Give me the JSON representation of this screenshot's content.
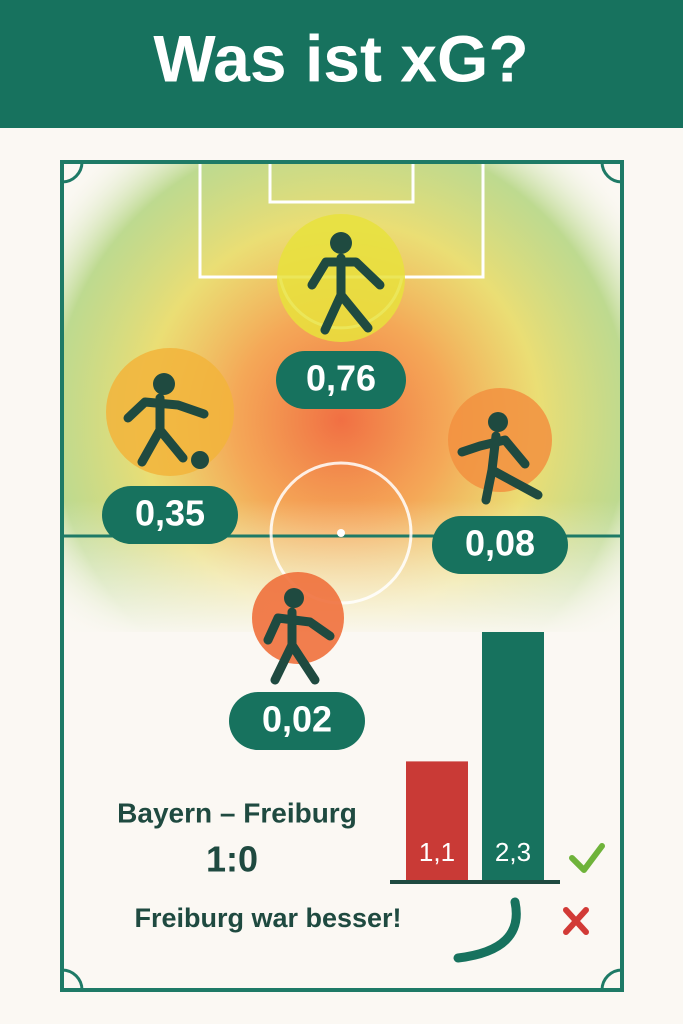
{
  "header": {
    "title": "Was ist xG?"
  },
  "shots": [
    {
      "label": "0,76"
    },
    {
      "label": "0,35"
    },
    {
      "label": "0,08"
    },
    {
      "label": "0,02"
    }
  ],
  "match": {
    "teams": "Bayern – Freiburg",
    "score": "1:0",
    "verdict": "Freiburg war besser!"
  },
  "chart_data": {
    "type": "bar",
    "categories": [
      null,
      null
    ],
    "values": [
      1.1,
      2.3
    ],
    "value_labels": [
      "1,1",
      "2,3"
    ],
    "colors": [
      "#c93a36",
      "#17725e"
    ]
  }
}
